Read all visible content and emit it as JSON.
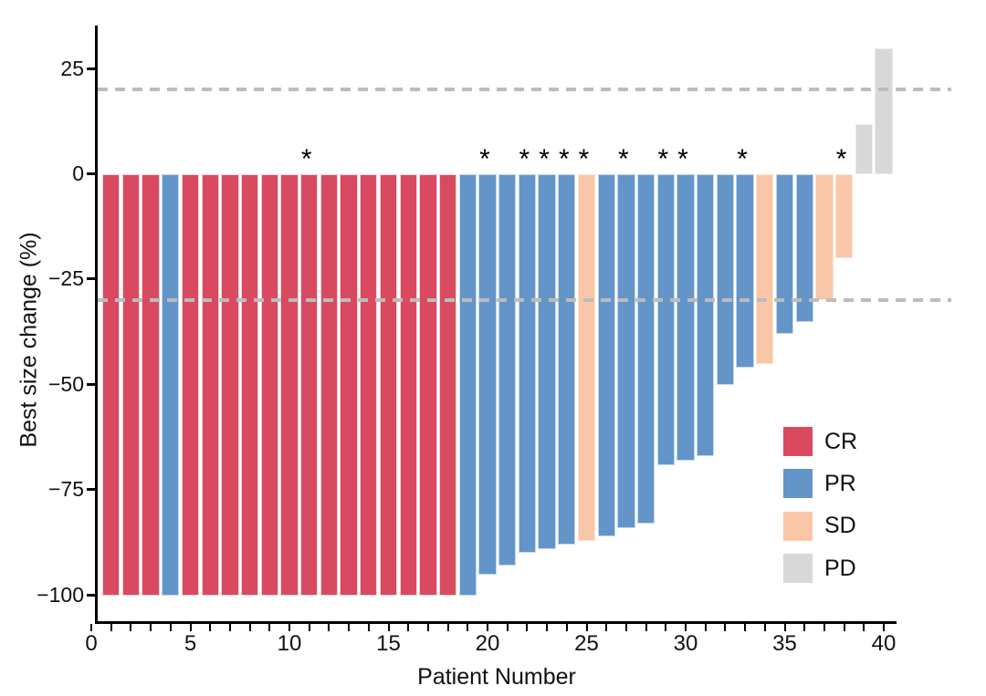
{
  "chart_data": {
    "type": "bar",
    "subtype": "waterfall-best-response",
    "title": "",
    "xlabel": "Patient Number",
    "ylabel": "Best size change (%)",
    "xlim": [
      0,
      41
    ],
    "ylim": [
      -110,
      35
    ],
    "grid": false,
    "x_tick_minor_step": 1,
    "x_tick_major_labels": [
      "0",
      "5",
      "10",
      "15",
      "20",
      "25",
      "30",
      "35",
      "40"
    ],
    "x_tick_major_values": [
      0,
      5,
      10,
      15,
      20,
      25,
      30,
      35,
      40
    ],
    "y_ticks": [
      {
        "value": 25,
        "label": "25"
      },
      {
        "value": 0,
        "label": "0"
      },
      {
        "value": -25,
        "label": "−25"
      },
      {
        "value": -50,
        "label": "−50"
      },
      {
        "value": -75,
        "label": "−75"
      },
      {
        "value": -100,
        "label": "−100"
      }
    ],
    "reference_lines": [
      {
        "value": 20,
        "style": "dashed",
        "color": "#BCBCBC"
      },
      {
        "value": -30,
        "style": "dashed",
        "color": "#BCBCBC"
      }
    ],
    "marker_symbol": "*",
    "marked_patients": [
      11,
      20,
      22,
      23,
      24,
      25,
      27,
      29,
      30,
      33,
      38
    ],
    "legend": {
      "position": "inside-right",
      "entries": [
        {
          "code": "CR",
          "color": "#D94A60"
        },
        {
          "code": "PR",
          "color": "#6495C8"
        },
        {
          "code": "SD",
          "color": "#F9C7A8"
        },
        {
          "code": "PD",
          "color": "#D8D8D8"
        }
      ]
    },
    "patients": [
      {
        "n": 1,
        "change": -100,
        "response": "CR",
        "star": false
      },
      {
        "n": 2,
        "change": -100,
        "response": "CR",
        "star": false
      },
      {
        "n": 3,
        "change": -100,
        "response": "CR",
        "star": false
      },
      {
        "n": 4,
        "change": -100,
        "response": "PR",
        "star": false
      },
      {
        "n": 5,
        "change": -100,
        "response": "CR",
        "star": false
      },
      {
        "n": 6,
        "change": -100,
        "response": "CR",
        "star": false
      },
      {
        "n": 7,
        "change": -100,
        "response": "CR",
        "star": false
      },
      {
        "n": 8,
        "change": -100,
        "response": "CR",
        "star": false
      },
      {
        "n": 9,
        "change": -100,
        "response": "CR",
        "star": false
      },
      {
        "n": 10,
        "change": -100,
        "response": "CR",
        "star": false
      },
      {
        "n": 11,
        "change": -100,
        "response": "CR",
        "star": true
      },
      {
        "n": 12,
        "change": -100,
        "response": "CR",
        "star": false
      },
      {
        "n": 13,
        "change": -100,
        "response": "CR",
        "star": false
      },
      {
        "n": 14,
        "change": -100,
        "response": "CR",
        "star": false
      },
      {
        "n": 15,
        "change": -100,
        "response": "CR",
        "star": false
      },
      {
        "n": 16,
        "change": -100,
        "response": "CR",
        "star": false
      },
      {
        "n": 17,
        "change": -100,
        "response": "CR",
        "star": false
      },
      {
        "n": 18,
        "change": -100,
        "response": "CR",
        "star": false
      },
      {
        "n": 19,
        "change": -100,
        "response": "PR",
        "star": false
      },
      {
        "n": 20,
        "change": -95,
        "response": "PR",
        "star": true
      },
      {
        "n": 21,
        "change": -93,
        "response": "PR",
        "star": false
      },
      {
        "n": 22,
        "change": -90,
        "response": "PR",
        "star": true
      },
      {
        "n": 23,
        "change": -89,
        "response": "PR",
        "star": true
      },
      {
        "n": 24,
        "change": -88,
        "response": "PR",
        "star": true
      },
      {
        "n": 25,
        "change": -87,
        "response": "SD",
        "star": true
      },
      {
        "n": 26,
        "change": -86,
        "response": "PR",
        "star": false
      },
      {
        "n": 27,
        "change": -84,
        "response": "PR",
        "star": true
      },
      {
        "n": 28,
        "change": -83,
        "response": "PR",
        "star": false
      },
      {
        "n": 29,
        "change": -69,
        "response": "PR",
        "star": true
      },
      {
        "n": 30,
        "change": -68,
        "response": "PR",
        "star": true
      },
      {
        "n": 31,
        "change": -67,
        "response": "PR",
        "star": false
      },
      {
        "n": 32,
        "change": -50,
        "response": "PR",
        "star": false
      },
      {
        "n": 33,
        "change": -46,
        "response": "PR",
        "star": true
      },
      {
        "n": 34,
        "change": -45,
        "response": "SD",
        "star": false
      },
      {
        "n": 35,
        "change": -38,
        "response": "PR",
        "star": false
      },
      {
        "n": 36,
        "change": -35,
        "response": "PR",
        "star": false
      },
      {
        "n": 37,
        "change": -30,
        "response": "SD",
        "star": false
      },
      {
        "n": 38,
        "change": -20,
        "response": "SD",
        "star": true
      },
      {
        "n": 39,
        "change": 12,
        "response": "PD",
        "star": false
      },
      {
        "n": 40,
        "change": 30,
        "response": "PD",
        "star": false
      }
    ]
  }
}
